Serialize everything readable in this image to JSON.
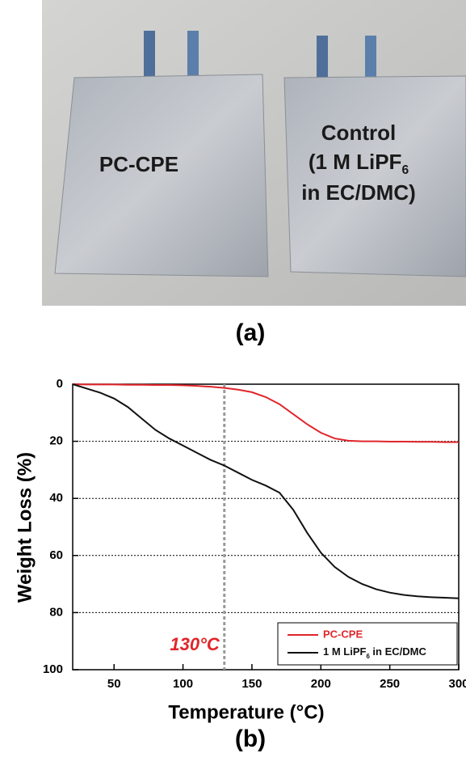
{
  "panel_a": {
    "labels": [
      "PC-CPE",
      "Control",
      "(1 M LiPF6",
      "in EC/DMC)"
    ],
    "caption": "(a)"
  },
  "chart_data": {
    "type": "line",
    "caption": "(b)",
    "x_label": "Temperature (°C)",
    "y_label": "Weight Loss (%)",
    "x": [
      20,
      30,
      40,
      50,
      60,
      70,
      80,
      90,
      100,
      110,
      120,
      130,
      140,
      150,
      160,
      170,
      180,
      190,
      200,
      210,
      220,
      230,
      240,
      250,
      260,
      270,
      280,
      290,
      300
    ],
    "series": [
      {
        "name": "PC-CPE",
        "color": "#e0262b",
        "values": [
          0,
          0.1,
          0.1,
          0.1,
          0.2,
          0.2,
          0.3,
          0.3,
          0.4,
          0.6,
          0.9,
          1.3,
          1.9,
          2.8,
          4.5,
          7,
          10.5,
          14,
          17,
          19,
          19.8,
          20,
          20,
          20.1,
          20.1,
          20.2,
          20.2,
          20.3,
          20.3
        ]
      },
      {
        "name": "1 M LiPF6 in EC/DMC",
        "color": "#111111",
        "values": [
          0,
          1.5,
          3,
          5,
          8,
          12,
          16,
          19,
          21.5,
          24,
          26.5,
          28.5,
          31,
          33.5,
          35.5,
          38,
          44,
          52,
          59,
          64,
          67.5,
          70,
          71.8,
          73,
          73.8,
          74.3,
          74.6,
          74.8,
          75
        ]
      }
    ],
    "xlim": [
      20,
      300
    ],
    "xticks": [
      50,
      100,
      150,
      200,
      250,
      300
    ],
    "ylim": [
      0,
      100
    ],
    "yticks": [
      0,
      20,
      40,
      60,
      80,
      100
    ],
    "y_inverted": true,
    "grid": true,
    "vline": {
      "value": 130,
      "label": "130°C",
      "color": "#e0262b"
    },
    "legend": "lower right"
  }
}
